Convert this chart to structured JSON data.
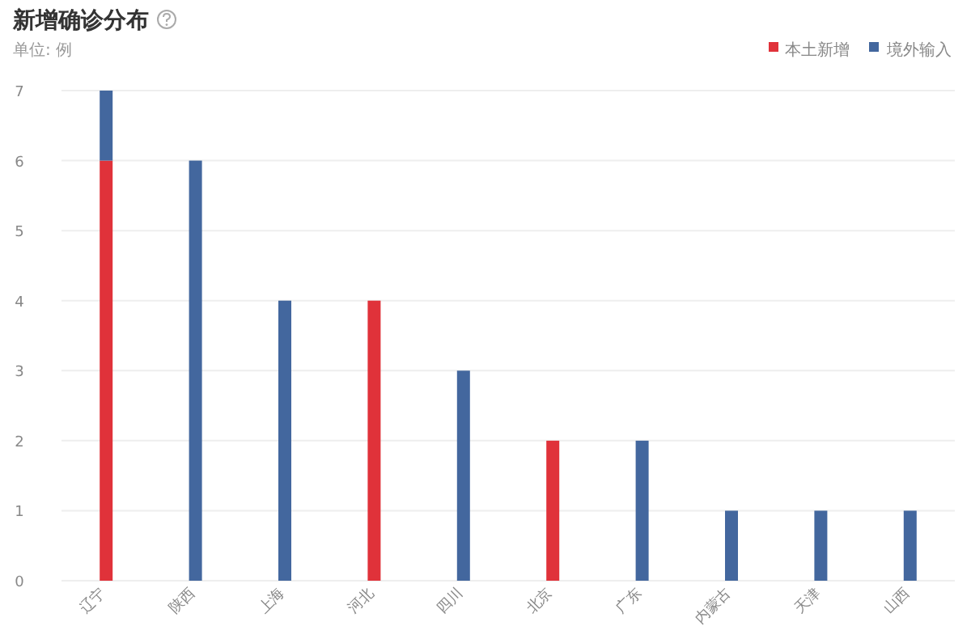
{
  "chart_data": {
    "type": "bar",
    "title": "新增确诊分布",
    "subtitle": "单位: 例",
    "categories": [
      "辽宁",
      "陕西",
      "上海",
      "河北",
      "四川",
      "北京",
      "广东",
      "内蒙古",
      "天津",
      "山西"
    ],
    "stacked": true,
    "series": [
      {
        "name": "本土新增",
        "color": "#e0323a",
        "values": [
          6,
          null,
          null,
          4,
          null,
          2,
          null,
          null,
          null,
          null
        ]
      },
      {
        "name": "境外输入",
        "color": "#43679e",
        "values": [
          1,
          6,
          4,
          null,
          3,
          null,
          2,
          1,
          1,
          1
        ]
      }
    ],
    "ylim": [
      0,
      7
    ],
    "yticks": [
      0,
      1,
      2,
      3,
      4,
      5,
      6,
      7
    ],
    "grid": "y",
    "legend": "top right"
  }
}
